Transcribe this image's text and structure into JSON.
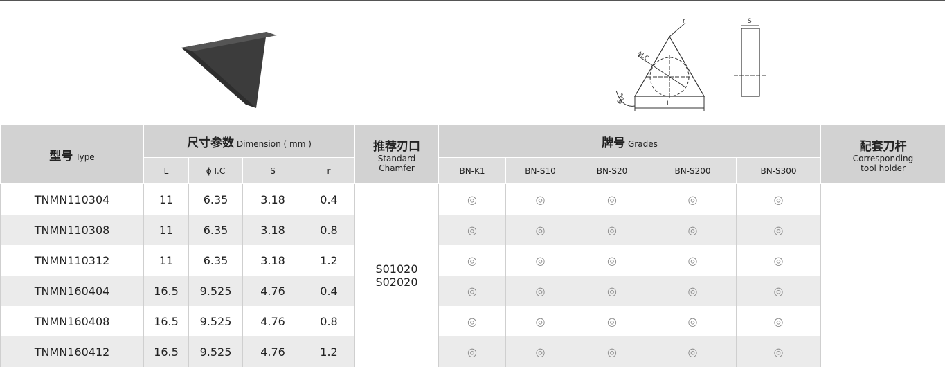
{
  "diagram": {
    "labels": {
      "r": "r",
      "ic": "ϕI.C",
      "s": "S",
      "l": "L",
      "angle": "60°"
    }
  },
  "header": {
    "type": {
      "zh": "型号",
      "en": "Type"
    },
    "dimension": {
      "zh": "尺寸参数",
      "en": "Dimension ( mm )"
    },
    "chamfer": {
      "zh": "推荐刃口",
      "en": [
        "Standard",
        "Chamfer"
      ]
    },
    "grades": {
      "zh": "牌号",
      "en": "Grades"
    },
    "holder": {
      "zh": "配套刀杆",
      "en": [
        "Corresponding",
        "tool holder"
      ]
    },
    "dimension_columns": [
      "L",
      "ϕ I.C",
      "S",
      "r"
    ],
    "grade_columns": [
      "BN-K1",
      "BN-S10",
      "BN-S20",
      "BN-S200",
      "BN-S300"
    ]
  },
  "table": {
    "chamfer": [
      "S01020",
      "S02020"
    ],
    "rows": [
      [
        "TNMN110304",
        "11",
        "6.35",
        "3.18",
        "0.4",
        "◎",
        "◎",
        "◎",
        "◎",
        "◎"
      ],
      [
        "TNMN110308",
        "11",
        "6.35",
        "3.18",
        "0.8",
        "◎",
        "◎",
        "◎",
        "◎",
        "◎"
      ],
      [
        "TNMN110312",
        "11",
        "6.35",
        "3.18",
        "1.2",
        "◎",
        "◎",
        "◎",
        "◎",
        "◎"
      ],
      [
        "TNMN160404",
        "16.5",
        "9.525",
        "4.76",
        "0.4",
        "◎",
        "◎",
        "◎",
        "◎",
        "◎"
      ],
      [
        "TNMN160408",
        "16.5",
        "9.525",
        "4.76",
        "0.8",
        "◎",
        "◎",
        "◎",
        "◎",
        "◎"
      ],
      [
        "TNMN160412",
        "16.5",
        "9.525",
        "4.76",
        "1.2",
        "◎",
        "◎",
        "◎",
        "◎",
        "◎"
      ]
    ]
  }
}
